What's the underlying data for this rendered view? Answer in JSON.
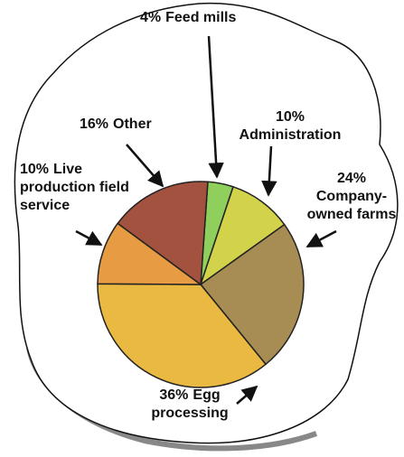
{
  "chart_data": {
    "type": "pie",
    "categories": [
      "Feed mills",
      "Administration",
      "Company-owned farms",
      "Egg processing",
      "Live production field service",
      "Other"
    ],
    "values": [
      4,
      10,
      24,
      36,
      10,
      16
    ],
    "value_labels": [
      "4%",
      "10%",
      "24%",
      "36%",
      "10%",
      "16%"
    ],
    "colors": [
      "#8fcf5b",
      "#d3d24b",
      "#a78d54",
      "#e9b942",
      "#e79b42",
      "#a2523f"
    ]
  }
}
